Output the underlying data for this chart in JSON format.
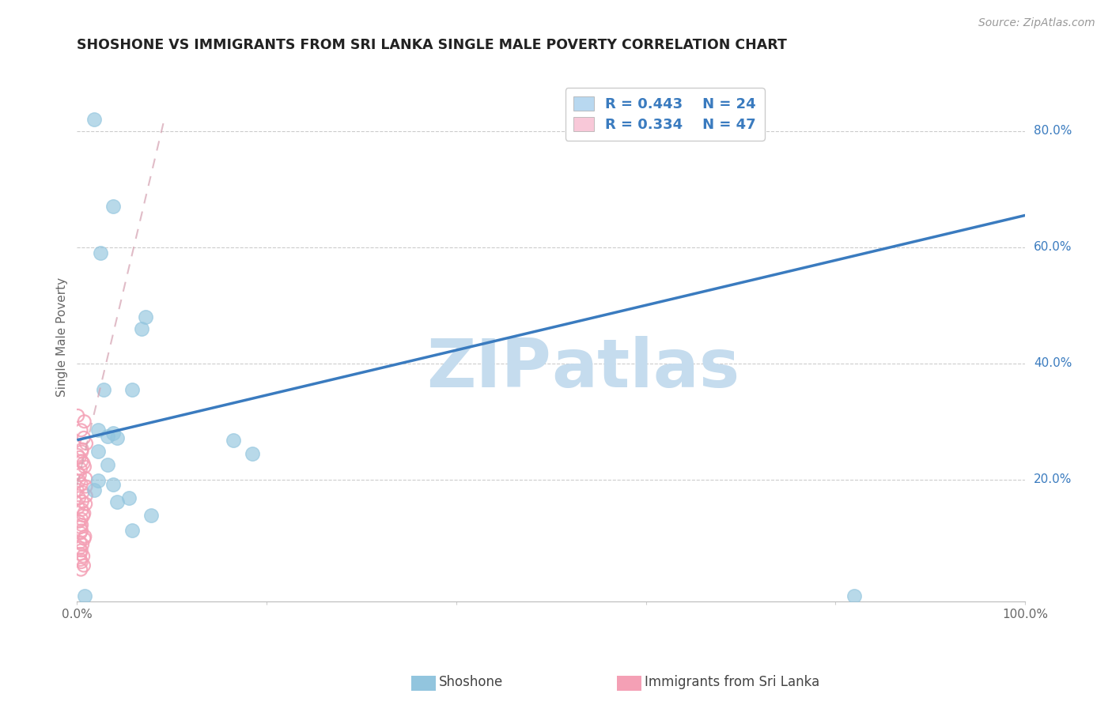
{
  "title": "SHOSHONE VS IMMIGRANTS FROM SRI LANKA SINGLE MALE POVERTY CORRELATION CHART",
  "source": "Source: ZipAtlas.com",
  "ylabel": "Single Male Poverty",
  "ytick_vals": [
    0.2,
    0.4,
    0.6,
    0.8
  ],
  "ytick_labels": [
    "20.0%",
    "40.0%",
    "60.0%",
    "80.0%"
  ],
  "xlim": [
    0.0,
    1.0
  ],
  "ylim": [
    -0.01,
    0.9
  ],
  "legend_r1": "R = 0.443",
  "legend_n1": "N = 24",
  "legend_r2": "R = 0.334",
  "legend_n2": "N = 47",
  "color_blue": "#92c5de",
  "color_pink": "#f4a0b5",
  "color_line_blue": "#3a7bbf",
  "color_line_pink": "#d4a0b0",
  "color_legend_text": "#3a7bbf",
  "color_title": "#222222",
  "color_source": "#999999",
  "color_axis_label": "#666666",
  "color_ytick": "#3a7bbf",
  "color_grid": "#cccccc",
  "shoshone_x": [
    0.018,
    0.038,
    0.025,
    0.028,
    0.022,
    0.032,
    0.042,
    0.038,
    0.058,
    0.022,
    0.032,
    0.038,
    0.042,
    0.055,
    0.018,
    0.022,
    0.165,
    0.185,
    0.078,
    0.058,
    0.82,
    0.008,
    0.072,
    0.068
  ],
  "shoshone_y": [
    0.82,
    0.67,
    0.59,
    0.355,
    0.285,
    0.275,
    0.272,
    0.28,
    0.355,
    0.248,
    0.225,
    0.192,
    0.162,
    0.168,
    0.182,
    0.198,
    0.268,
    0.245,
    0.138,
    0.112,
    0.0,
    0.0,
    0.48,
    0.46
  ],
  "srilanka_y": [
    0.31,
    0.3,
    0.285,
    0.272,
    0.262,
    0.252,
    0.248,
    0.242,
    0.238,
    0.232,
    0.228,
    0.222,
    0.218,
    0.212,
    0.208,
    0.202,
    0.198,
    0.192,
    0.188,
    0.182,
    0.178,
    0.172,
    0.168,
    0.162,
    0.158,
    0.152,
    0.148,
    0.142,
    0.138,
    0.132,
    0.128,
    0.122,
    0.118,
    0.112,
    0.108,
    0.102,
    0.098,
    0.092,
    0.088,
    0.082,
    0.078,
    0.072,
    0.068,
    0.062,
    0.058,
    0.052,
    0.045
  ],
  "blue_line_x": [
    0.0,
    1.0
  ],
  "blue_line_y": [
    0.268,
    0.655
  ],
  "pink_line_x": [
    0.0,
    0.092
  ],
  "pink_line_y": [
    0.19,
    0.82
  ],
  "watermark_zip_color": "#c5dcee",
  "watermark_atlas_color": "#c5dcee"
}
